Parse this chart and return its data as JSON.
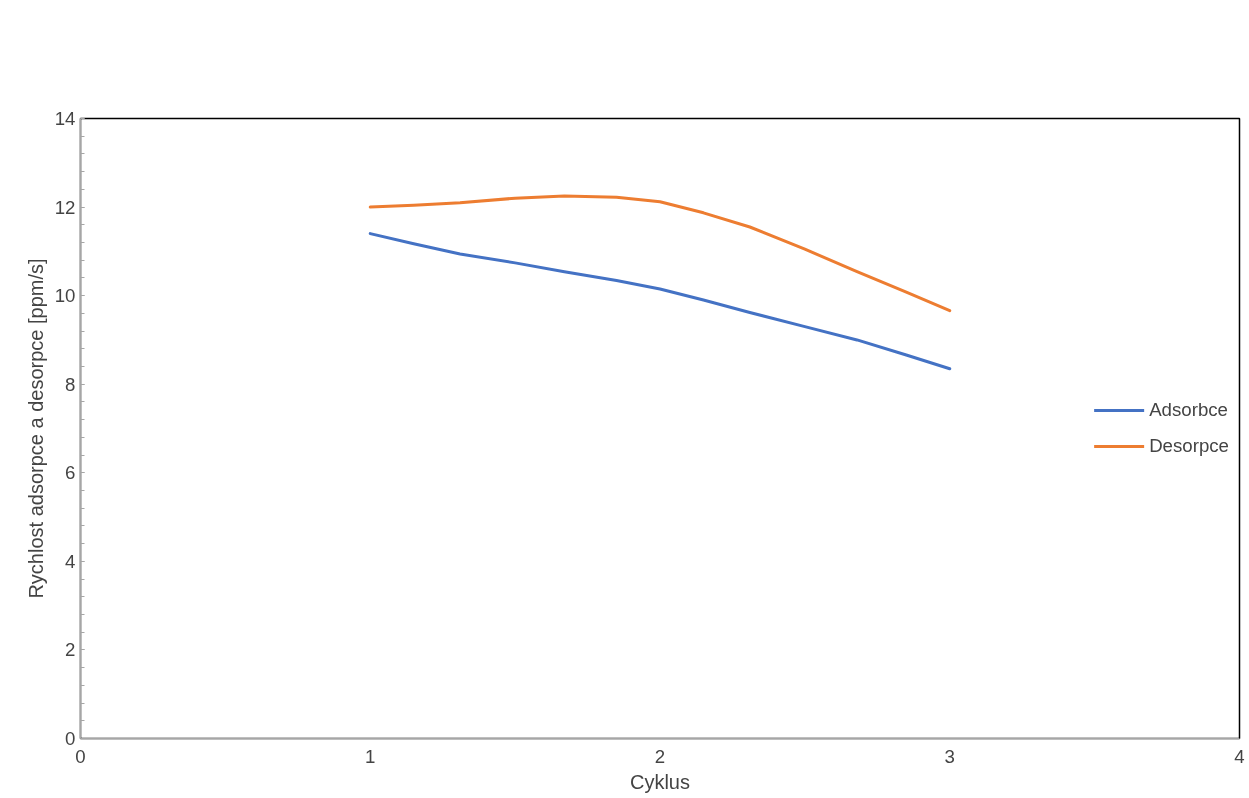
{
  "chart_data": {
    "type": "line",
    "xlabel": "Cyklus",
    "ylabel": "Rychlost adsorpce a desorpce [ppm/s]",
    "series": [
      {
        "name": "Adsorbce",
        "color": "#4472c4",
        "x": [
          1,
          1.15,
          1.31,
          1.5,
          1.67,
          1.85,
          2,
          2.15,
          2.31,
          2.5,
          2.68,
          2.85,
          3
        ],
        "values": [
          11.4,
          11.17,
          10.94,
          10.74,
          10.54,
          10.34,
          10.15,
          9.9,
          9.62,
          9.3,
          9.0,
          8.66,
          8.35
        ]
      },
      {
        "name": "Desorpce",
        "color": "#ed7d31",
        "x": [
          1,
          1.15,
          1.31,
          1.5,
          1.67,
          1.85,
          2,
          2.15,
          2.31,
          2.5,
          2.68,
          2.85,
          3
        ],
        "values": [
          12.0,
          12.04,
          12.1,
          12.2,
          12.25,
          12.22,
          12.12,
          11.87,
          11.55,
          11.05,
          10.54,
          10.08,
          9.66
        ]
      }
    ],
    "xlim": [
      0,
      4
    ],
    "xticks": [
      0,
      1,
      2,
      3,
      4
    ],
    "ylim": [
      0,
      14
    ],
    "yticks": [
      0,
      2,
      4,
      6,
      8,
      10,
      12,
      14
    ],
    "grid": false,
    "legend": "right",
    "marker": "none",
    "line_style": "solid"
  }
}
